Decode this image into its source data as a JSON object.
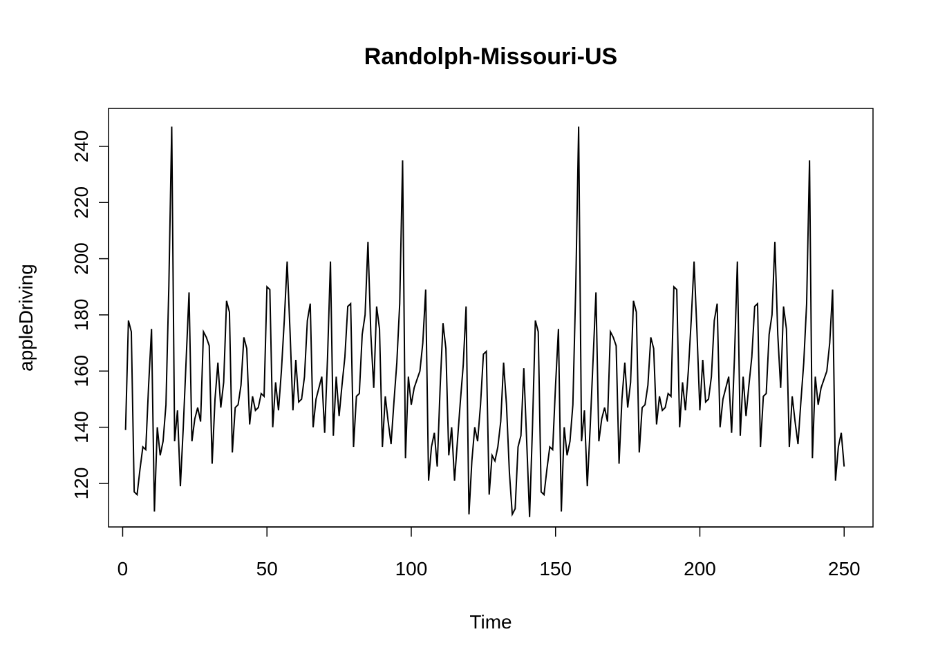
{
  "chart_data": {
    "type": "line",
    "title": "Randolph-Missouri-US",
    "xlabel": "Time",
    "ylabel": "appleDriving",
    "xlim": [
      -4.9,
      260
    ],
    "ylim": [
      104.5,
      253.5
    ],
    "x_ticks": [
      0,
      50,
      100,
      150,
      200,
      250
    ],
    "y_ticks": [
      120,
      140,
      160,
      180,
      200,
      220,
      240
    ],
    "grid": false,
    "legend": "none",
    "line_color": "#000000",
    "series": [
      {
        "x_start": 1,
        "values": [
          139,
          178,
          174,
          117,
          116,
          125,
          133,
          132,
          155,
          175,
          110,
          140,
          130,
          135,
          148,
          190,
          247,
          135,
          146,
          119,
          140,
          164,
          188,
          135,
          143,
          147,
          142,
          174,
          172,
          169,
          127,
          150,
          163,
          147,
          156,
          185,
          181,
          131,
          147,
          148,
          155,
          172,
          168,
          141,
          151,
          146,
          147,
          152,
          151,
          190,
          189,
          140,
          156,
          146,
          160,
          178,
          199,
          174,
          146,
          164,
          149,
          150,
          158,
          178,
          184,
          140,
          150,
          154,
          158,
          138,
          165,
          199,
          137,
          158,
          144,
          155,
          165,
          183,
          184,
          133,
          151,
          152,
          173,
          180,
          206,
          173,
          154,
          183,
          175,
          133,
          151,
          142,
          134,
          149,
          163,
          184,
          235,
          129,
          158,
          148,
          154,
          157,
          160,
          170,
          189,
          121,
          133,
          138,
          126,
          154,
          177,
          168,
          130,
          140,
          121,
          135,
          149,
          162,
          183,
          109,
          128,
          140,
          135,
          148,
          166,
          167,
          116,
          130,
          128,
          133,
          142,
          163,
          148,
          124,
          109,
          111,
          133,
          137,
          161,
          135,
          108,
          140,
          178,
          174,
          117,
          116,
          125,
          133,
          132,
          155,
          175,
          110,
          140,
          130,
          135,
          148,
          190,
          247,
          135,
          146,
          119,
          140,
          164,
          188,
          135,
          143,
          147,
          142,
          174,
          172,
          169,
          127,
          150,
          163,
          147,
          156,
          185,
          181,
          131,
          147,
          148,
          155,
          172,
          168,
          141,
          151,
          146,
          147,
          152,
          151,
          190,
          189,
          140,
          156,
          146,
          160,
          178,
          199,
          174,
          146,
          164,
          149,
          150,
          158,
          178,
          184,
          140,
          150,
          154,
          158,
          138,
          165,
          199,
          137,
          158,
          144,
          155,
          165,
          183,
          184,
          133,
          151,
          152,
          173,
          180,
          206,
          173,
          154,
          183,
          175,
          133,
          151,
          142,
          134,
          149,
          163,
          184,
          235,
          129,
          158,
          148,
          154,
          157,
          160,
          170,
          189,
          121,
          133,
          138,
          126
        ]
      }
    ]
  }
}
